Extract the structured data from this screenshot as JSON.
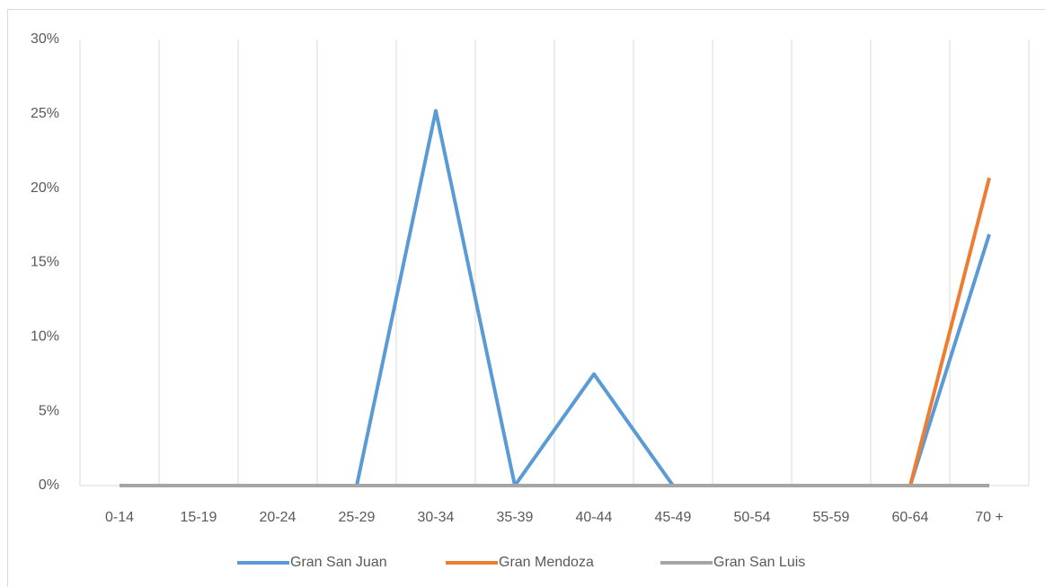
{
  "chart_data": {
    "type": "line",
    "categories": [
      "0-14",
      "15-19",
      "20-24",
      "25-29",
      "30-34",
      "35-39",
      "40-44",
      "45-49",
      "50-54",
      "55-59",
      "60-64",
      "70 +"
    ],
    "series": [
      {
        "name": "Gran San Juan",
        "color": "#5b9bd5",
        "values": [
          0,
          0,
          0,
          0,
          25.2,
          0,
          7.5,
          0,
          0,
          0,
          0,
          16.9
        ]
      },
      {
        "name": "Gran Mendoza",
        "color": "#ed7d31",
        "values": [
          0,
          0,
          0,
          0,
          0,
          0,
          0,
          0,
          0,
          0,
          0,
          20.7
        ]
      },
      {
        "name": "Gran San Luis",
        "color": "#a5a5a5",
        "values": [
          0,
          0,
          0,
          0,
          0,
          0,
          0,
          0,
          0,
          0,
          0,
          0
        ]
      }
    ],
    "ylim": [
      0,
      30
    ],
    "yticks": [
      {
        "value": 0,
        "label": "0%"
      },
      {
        "value": 5,
        "label": "5%"
      },
      {
        "value": 10,
        "label": "10%"
      },
      {
        "value": 15,
        "label": "15%"
      },
      {
        "value": 20,
        "label": "20%"
      },
      {
        "value": 25,
        "label": "25%"
      },
      {
        "value": 30,
        "label": "30%"
      }
    ],
    "legend": "bottom"
  }
}
